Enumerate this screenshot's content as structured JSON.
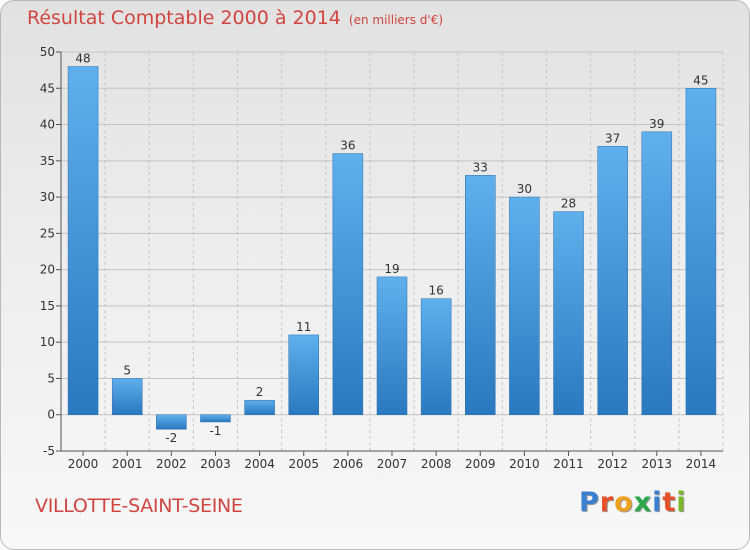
{
  "chart_data": {
    "type": "bar",
    "title": "Résultat Comptable 2000 à 2014",
    "subtitle": "(en milliers d'€)",
    "categories": [
      "2000",
      "2001",
      "2002",
      "2003",
      "2004",
      "2005",
      "2006",
      "2007",
      "2008",
      "2009",
      "2010",
      "2011",
      "2012",
      "2013",
      "2014"
    ],
    "values": [
      48,
      5,
      -2,
      -1,
      2,
      11,
      36,
      19,
      16,
      33,
      30,
      28,
      37,
      39,
      45
    ],
    "ylim": [
      -5,
      50
    ],
    "yticks": [
      "-5",
      "0",
      "5",
      "10",
      "15",
      "20",
      "25",
      "30",
      "35",
      "40",
      "45",
      "50"
    ],
    "xlabel": "",
    "ylabel": "",
    "grid": true,
    "bar_color": "#3d8fd4"
  },
  "place_name": "VILLOTTE-SAINT-SEINE",
  "logo": {
    "letters": [
      "P",
      "r",
      "o",
      "x",
      "i",
      "t",
      "i"
    ],
    "colors": [
      "#3a7fd0",
      "#e8502a",
      "#f0a020",
      "#2aa84a",
      "#3a7fd0",
      "#e8502a",
      "#7ab828"
    ]
  }
}
